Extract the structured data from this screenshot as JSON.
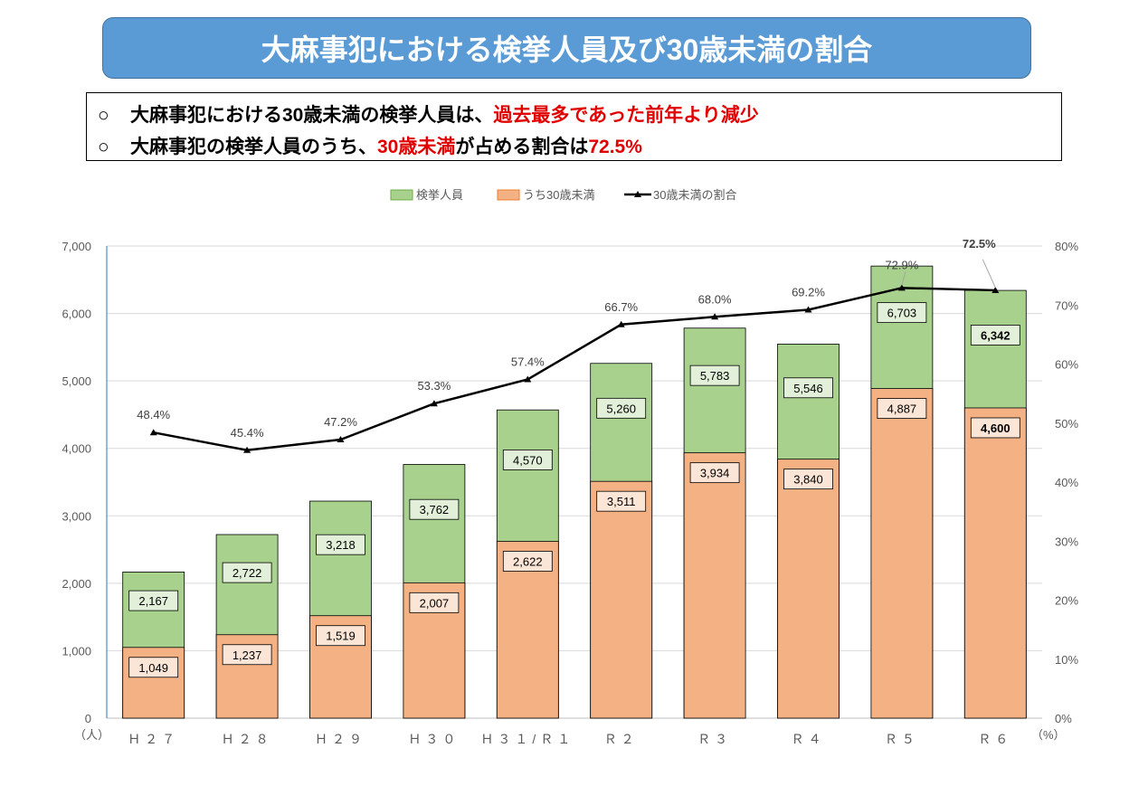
{
  "header": {
    "title": "大麻事犯における検挙人員及び30歳未満の割合"
  },
  "summary": {
    "line1": {
      "bullet": "○",
      "black": "大麻事犯における30歳未満の検挙人員は、",
      "red": "過去最多であった前年より減少"
    },
    "line2": {
      "bullet": "○",
      "black1": "大麻事犯の検挙人員のうち、",
      "red1": "30歳未満",
      "black2": "が占める割合は",
      "red2": "72.5%"
    }
  },
  "chart_data": {
    "type": "bar",
    "subtype": "overlapped bars with line on secondary axis",
    "categories": [
      "H27",
      "H28",
      "H29",
      "H30",
      "H31/R1",
      "R2",
      "R3",
      "R4",
      "R5",
      "R6"
    ],
    "category_labels": [
      "Ｈ２７",
      "Ｈ２８",
      "Ｈ２９",
      "Ｈ３０",
      "Ｈ３１/Ｒ１",
      "Ｒ２",
      "Ｒ３",
      "Ｒ４",
      "Ｒ５",
      "Ｒ６"
    ],
    "series": [
      {
        "name": "検挙人員",
        "type": "bar",
        "color": "#a9d18e",
        "values": [
          2167,
          2722,
          3218,
          3762,
          4570,
          5260,
          5783,
          5546,
          6703,
          6342
        ],
        "labels": [
          "2,167",
          "2,722",
          "3,218",
          "3,762",
          "4,570",
          "5,260",
          "5,783",
          "5,546",
          "6,703",
          "6,342"
        ]
      },
      {
        "name": "うち30歳未満",
        "type": "bar",
        "color": "#f4b183",
        "values": [
          1049,
          1237,
          1519,
          2007,
          2622,
          3511,
          3934,
          3840,
          4887,
          4600
        ],
        "labels": [
          "1,049",
          "1,237",
          "1,519",
          "2,007",
          "2,622",
          "3,511",
          "3,934",
          "3,840",
          "4,887",
          "4,600"
        ]
      },
      {
        "name": "30歳未満の割合",
        "type": "line",
        "axis": "right",
        "color": "#000000",
        "values": [
          48.4,
          45.4,
          47.2,
          53.3,
          57.4,
          66.7,
          68.0,
          69.2,
          72.9,
          72.5
        ],
        "labels": [
          "48.4%",
          "45.4%",
          "47.2%",
          "53.3%",
          "57.4%",
          "66.7%",
          "68.0%",
          "69.2%",
          "72.9%",
          "72.5%"
        ]
      }
    ],
    "highlight_color": "#e00000",
    "highlight_category": "R6",
    "y_left": {
      "min": 0,
      "max": 7000,
      "step": 1000,
      "tick_labels": [
        "0",
        "1,000",
        "2,000",
        "3,000",
        "4,000",
        "5,000",
        "6,000",
        "7,000"
      ],
      "unit_label": "（人）"
    },
    "y_right": {
      "min": 0,
      "max": 80,
      "step": 10,
      "tick_labels": [
        "0%",
        "10%",
        "20%",
        "30%",
        "40%",
        "50%",
        "60%",
        "70%",
        "80%"
      ],
      "unit_label": "（%）"
    },
    "grid": true,
    "legend_position": "top"
  }
}
